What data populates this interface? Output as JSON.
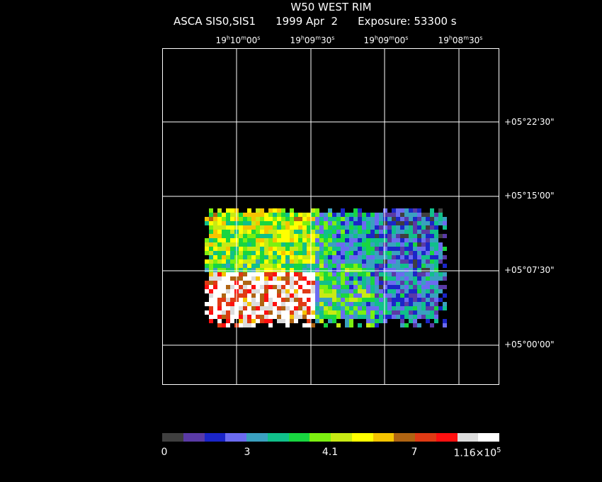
{
  "header": {
    "title": "W50 WEST RIM",
    "instrument": "ASCA SIS0,SIS1",
    "date": "1999 Apr  2",
    "exposure": "Exposure: 53300 s"
  },
  "ra_axis": {
    "labels": [
      {
        "h": "19",
        "m": "10",
        "s": "00"
      },
      {
        "h": "19",
        "m": "09",
        "s": "30"
      },
      {
        "h": "19",
        "m": "09",
        "s": "00"
      },
      {
        "h": "19",
        "m": "08",
        "s": "30"
      }
    ]
  },
  "dec_axis": {
    "labels": [
      "+05°22'30\"",
      "+05°15'00\"",
      "+05°07'30\"",
      "+05°00'00\""
    ]
  },
  "colorbar": {
    "colors": [
      "#3f3f3f",
      "#5a3aa6",
      "#1b25c8",
      "#6b6bf0",
      "#3aa0c0",
      "#10c08a",
      "#18d640",
      "#7cf010",
      "#c8ea14",
      "#ffff00",
      "#f5c400",
      "#b06412",
      "#e03a14",
      "#ff1010",
      "#dcdcdc",
      "#ffffff"
    ],
    "tick_0": "0",
    "tick_1": "3",
    "tick_2": "4.1",
    "tick_3": "7",
    "tick_4_mantissa": "1.16×10",
    "tick_4_exp": "5"
  }
}
